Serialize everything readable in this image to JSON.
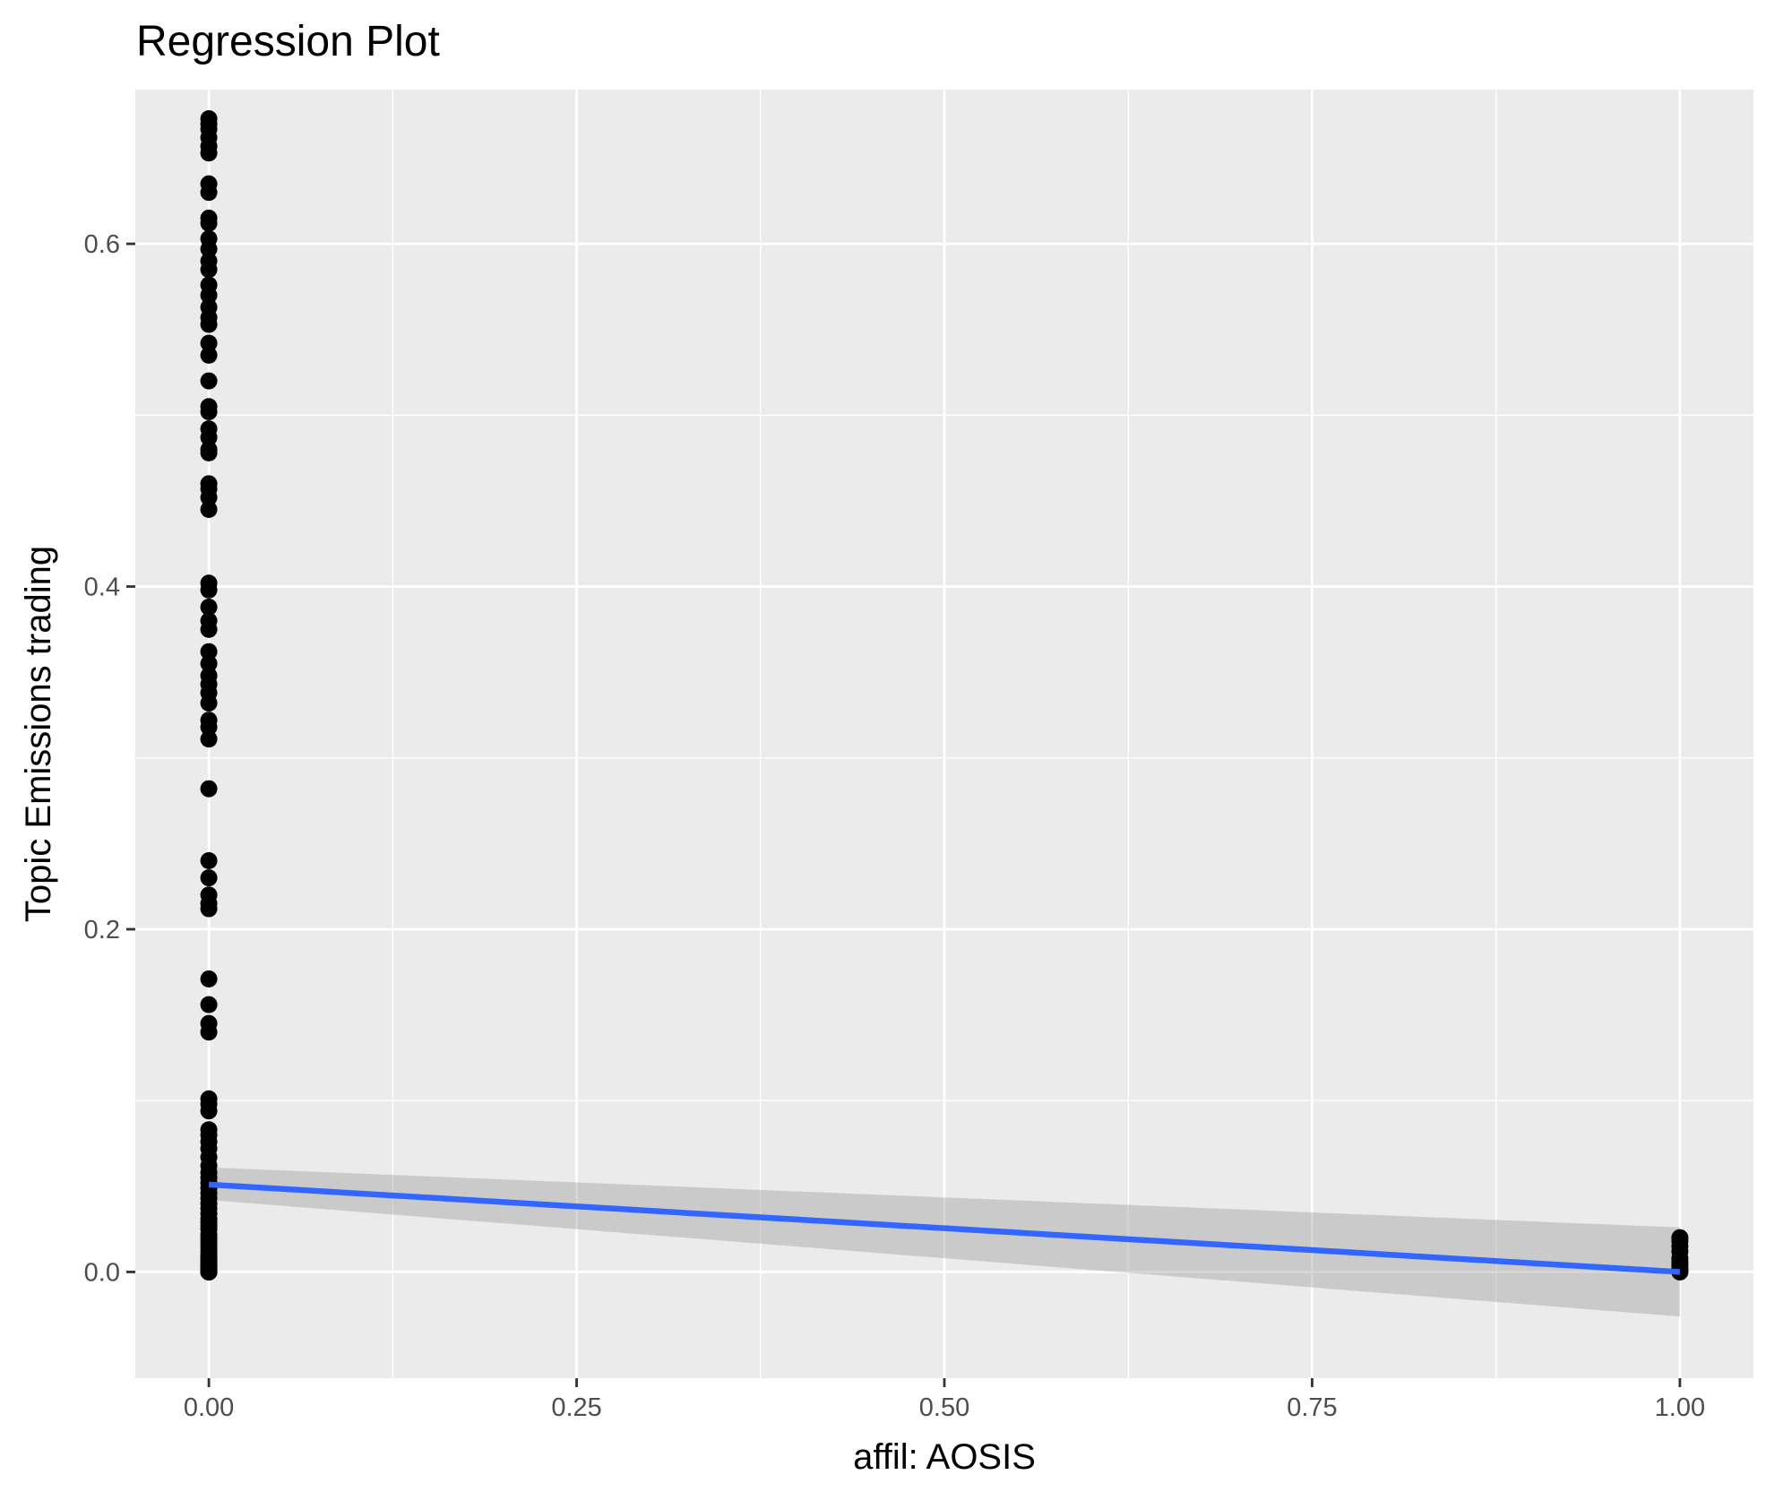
{
  "chart_data": {
    "type": "scatter",
    "title": "Regression Plot",
    "xlabel": "affil: AOSIS",
    "ylabel": "Topic Emissions trading",
    "xlim": [
      -0.05,
      1.05
    ],
    "ylim": [
      -0.062,
      0.69
    ],
    "grid": true,
    "x_ticks": [
      0.0,
      0.25,
      0.5,
      0.75,
      1.0
    ],
    "x_tick_labels": [
      "0.00",
      "0.25",
      "0.50",
      "0.75",
      "1.00"
    ],
    "y_ticks": [
      0.0,
      0.2,
      0.4,
      0.6
    ],
    "y_tick_labels": [
      "0.0",
      "0.2",
      "0.4",
      "0.6"
    ],
    "points": {
      "x": [
        0,
        0,
        0,
        0,
        0,
        0,
        0,
        0,
        0,
        0,
        0,
        0,
        0,
        0,
        0,
        0,
        0,
        0,
        0,
        0,
        0,
        0,
        0,
        0,
        0,
        0,
        0,
        0,
        0,
        0,
        0,
        0,
        0,
        0,
        0,
        0,
        0,
        0,
        0,
        0,
        0,
        0,
        0,
        0,
        0,
        0,
        0,
        0,
        0,
        0,
        0,
        0,
        0,
        0,
        0,
        0,
        0,
        0,
        0,
        0,
        0,
        0,
        0,
        0,
        0,
        0,
        0,
        0,
        0,
        0,
        0,
        0,
        0,
        0,
        0,
        0,
        0,
        0,
        0,
        0,
        0,
        0,
        0,
        0,
        0,
        0,
        0,
        0,
        0,
        0,
        0,
        0,
        0,
        0,
        0,
        0,
        0,
        0,
        0,
        0,
        1,
        1,
        1,
        1,
        1,
        1,
        1,
        1,
        1,
        1
      ],
      "y": [
        0.673,
        0.67,
        0.667,
        0.662,
        0.657,
        0.653,
        0.635,
        0.63,
        0.615,
        0.612,
        0.603,
        0.597,
        0.59,
        0.585,
        0.576,
        0.57,
        0.563,
        0.557,
        0.553,
        0.542,
        0.535,
        0.52,
        0.505,
        0.502,
        0.492,
        0.487,
        0.48,
        0.478,
        0.46,
        0.457,
        0.452,
        0.445,
        0.402,
        0.398,
        0.388,
        0.38,
        0.375,
        0.362,
        0.355,
        0.348,
        0.343,
        0.338,
        0.332,
        0.322,
        0.318,
        0.311,
        0.282,
        0.24,
        0.23,
        0.22,
        0.215,
        0.212,
        0.171,
        0.156,
        0.145,
        0.14,
        0.101,
        0.098,
        0.094,
        0.083,
        0.08,
        0.076,
        0.072,
        0.067,
        0.062,
        0.058,
        0.055,
        0.052,
        0.049,
        0.046,
        0.043,
        0.04,
        0.037,
        0.034,
        0.031,
        0.029,
        0.027,
        0.025,
        0.022,
        0.02,
        0.018,
        0.016,
        0.014,
        0.012,
        0.01,
        0.009,
        0.008,
        0.007,
        0.006,
        0.005,
        0.004,
        0.003,
        0.002,
        0.002,
        0.001,
        0.001,
        0.0,
        0.0,
        0.0,
        0.0,
        0.02,
        0.018,
        0.015,
        0.012,
        0.008,
        0.006,
        0.004,
        0.002,
        0.001,
        0.0
      ]
    },
    "regression": {
      "x": [
        0,
        1
      ],
      "y": [
        0.051,
        0.0
      ],
      "ci_lower": [
        0.042,
        -0.026
      ],
      "ci_upper": [
        0.061,
        0.026
      ]
    },
    "colors": {
      "panel_background": "#ebebeb",
      "grid": "#ffffff",
      "points": "#000000",
      "line": "#3366ff",
      "ribbon": "#999999",
      "tick_text": "#4d4d4d",
      "tick_mark": "#333333"
    }
  }
}
